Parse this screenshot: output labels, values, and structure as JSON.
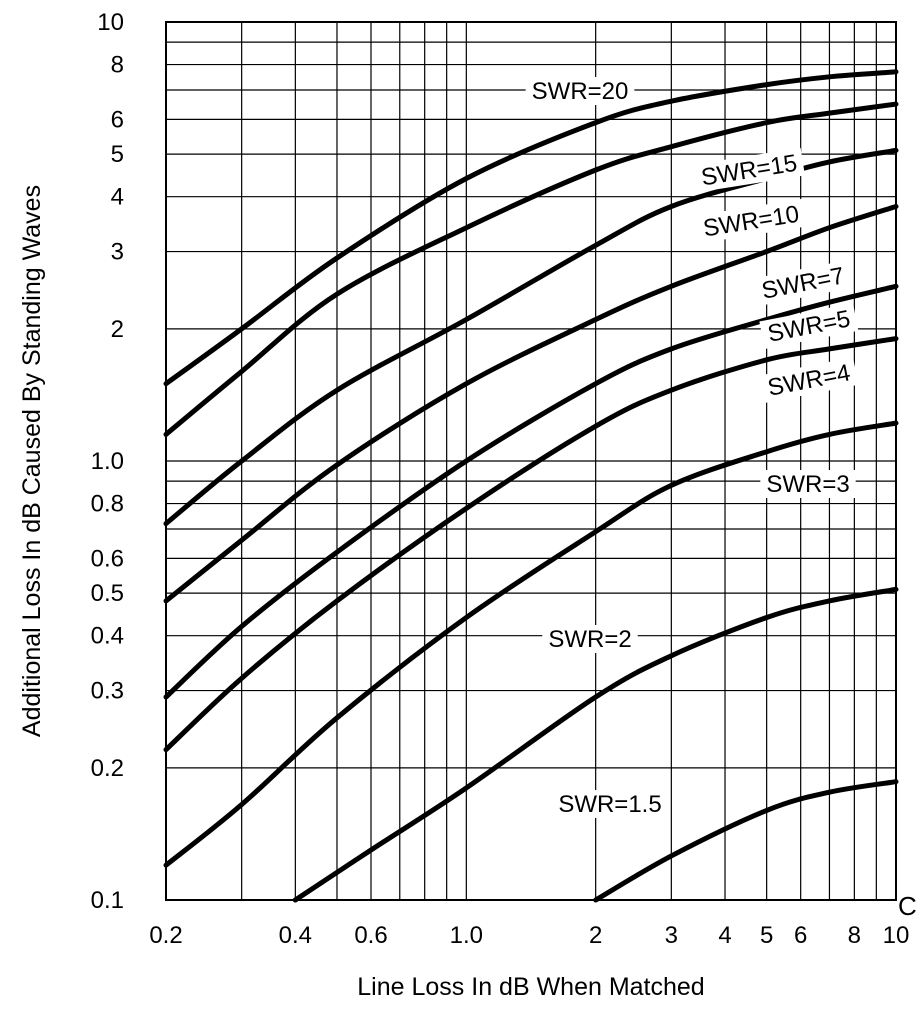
{
  "chart_data": {
    "type": "line",
    "title": "",
    "xlabel": "Line Loss In dB When Matched",
    "ylabel": "Additional Loss In dB Caused By Standing Waves",
    "x_scale": "log",
    "y_scale": "log",
    "xlim": [
      0.2,
      10
    ],
    "ylim": [
      0.1,
      10
    ],
    "grid": true,
    "legend": "none",
    "x_tick_labels": [
      "0.2",
      "0.4",
      "0.6",
      "1.0",
      "2",
      "3",
      "4",
      "5",
      "6",
      "8",
      "10"
    ],
    "y_tick_labels": [
      "0.1",
      "0.2",
      "0.3",
      "0.4",
      "0.5",
      "0.6",
      "0.8",
      "1.0",
      "2",
      "3",
      "4",
      "5",
      "6",
      "8",
      "10"
    ],
    "series": [
      {
        "name": "SWR=20",
        "x": [
          0.2,
          0.3,
          0.5,
          1.0,
          2.0,
          3.0,
          5.0,
          7.0,
          10.0
        ],
        "y": [
          1.5,
          2.0,
          2.9,
          4.4,
          5.9,
          6.6,
          7.2,
          7.5,
          7.7
        ]
      },
      {
        "name": "SWR=15",
        "x": [
          0.2,
          0.3,
          0.5,
          1.0,
          2.0,
          3.0,
          5.0,
          7.0,
          10.0
        ],
        "y": [
          1.15,
          1.6,
          2.4,
          3.4,
          4.6,
          5.2,
          5.9,
          6.2,
          6.5
        ]
      },
      {
        "name": "SWR=10",
        "x": [
          0.2,
          0.3,
          0.5,
          1.0,
          2.0,
          3.0,
          5.0,
          7.0,
          10.0
        ],
        "y": [
          0.72,
          1.0,
          1.45,
          2.1,
          3.1,
          3.8,
          4.4,
          4.8,
          5.1
        ]
      },
      {
        "name": "SWR=7",
        "x": [
          0.2,
          0.3,
          0.5,
          1.0,
          2.0,
          3.0,
          5.0,
          7.0,
          10.0
        ],
        "y": [
          0.48,
          0.66,
          0.98,
          1.5,
          2.1,
          2.5,
          3.0,
          3.4,
          3.8
        ]
      },
      {
        "name": "SWR=5",
        "x": [
          0.2,
          0.3,
          0.5,
          1.0,
          2.0,
          3.0,
          5.0,
          7.0,
          10.0
        ],
        "y": [
          0.29,
          0.42,
          0.62,
          1.0,
          1.5,
          1.8,
          2.1,
          2.3,
          2.5
        ]
      },
      {
        "name": "SWR=4",
        "x": [
          0.2,
          0.3,
          0.5,
          1.0,
          2.0,
          3.0,
          5.0,
          7.0,
          10.0
        ],
        "y": [
          0.22,
          0.32,
          0.48,
          0.78,
          1.2,
          1.45,
          1.7,
          1.8,
          1.9
        ]
      },
      {
        "name": "SWR=3",
        "x": [
          0.2,
          0.3,
          0.5,
          1.0,
          2.0,
          3.0,
          5.0,
          7.0,
          10.0
        ],
        "y": [
          0.12,
          0.165,
          0.26,
          0.44,
          0.69,
          0.88,
          1.05,
          1.15,
          1.22
        ]
      },
      {
        "name": "SWR=2",
        "x": [
          0.4,
          0.6,
          1.0,
          2.0,
          3.0,
          5.0,
          7.0,
          10.0
        ],
        "y": [
          0.1,
          0.13,
          0.18,
          0.29,
          0.36,
          0.44,
          0.48,
          0.51
        ]
      },
      {
        "name": "SWR=1.5",
        "x": [
          2.0,
          3.0,
          5.0,
          7.0,
          10.0
        ],
        "y": [
          0.1,
          0.126,
          0.16,
          0.176,
          0.186
        ]
      }
    ]
  },
  "edge_glyphs": {
    "top_right": "",
    "bottom_right": "C"
  }
}
